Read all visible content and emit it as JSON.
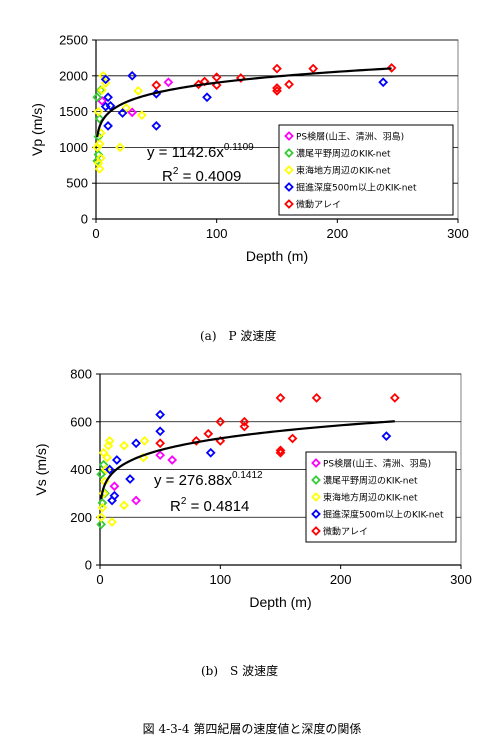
{
  "chart_data": [
    {
      "type": "scatter",
      "caption": "(a)　P 波速度",
      "xlabel": "Depth (m)",
      "ylabel": "Vp (m/s)",
      "xlim": [
        0,
        300
      ],
      "ylim": [
        0,
        2500
      ],
      "xticks": [
        0,
        100,
        200,
        300
      ],
      "yticks": [
        0,
        500,
        1000,
        1500,
        2000,
        2500
      ],
      "grid": "horizontal",
      "legend_position": "right-bottom",
      "equation": {
        "lhs": "y = 1142.6x",
        "exp": "0.1109"
      },
      "r2": {
        "lhs": "R",
        "exp": "2",
        "rhs": " = 0.4009"
      },
      "fit": {
        "a": 1142.6,
        "b": 0.1109,
        "x_range": [
          1,
          245
        ]
      },
      "series": [
        {
          "name": "PS検層(山王、清洲、羽島)",
          "color": "#ff00ff",
          "points": [
            [
              60,
              1910
            ],
            [
              30,
              1490
            ],
            [
              5,
              1650
            ]
          ]
        },
        {
          "name": "濃尾平野周辺のKIK-net",
          "color": "#33cc33",
          "points": [
            [
              1,
              810
            ],
            [
              2,
              900
            ],
            [
              2,
              1150
            ],
            [
              3,
              1400
            ],
            [
              1,
              1700
            ],
            [
              4,
              1800
            ]
          ]
        },
        {
          "name": "東海地方周辺のKIK-net",
          "color": "#ffff00",
          "points": [
            [
              1,
              1000
            ],
            [
              2,
              780
            ],
            [
              3,
              700
            ],
            [
              3,
              1050
            ],
            [
              4,
              1200
            ],
            [
              2,
              1500
            ],
            [
              5,
              1800
            ],
            [
              6,
              2000
            ],
            [
              8,
              1900
            ],
            [
              20,
              1000
            ],
            [
              25,
              1550
            ],
            [
              35,
              1790
            ],
            [
              38,
              1450
            ],
            [
              4,
              850
            ]
          ]
        },
        {
          "name": "掘進深度500m以上のKIK-net",
          "color": "#0000ff",
          "points": [
            [
              8,
              1570
            ],
            [
              10,
              1300
            ],
            [
              12,
              1580
            ],
            [
              10,
              1700
            ],
            [
              8,
              1950
            ],
            [
              22,
              1480
            ],
            [
              30,
              2000
            ],
            [
              50,
              1300
            ],
            [
              50,
              1750
            ],
            [
              92,
              1700
            ],
            [
              238,
              1910
            ]
          ]
        },
        {
          "name": "微動アレイ",
          "color": "#ff0000",
          "points": [
            [
              50,
              1870
            ],
            [
              85,
              1880
            ],
            [
              90,
              1920
            ],
            [
              100,
              1870
            ],
            [
              100,
              1980
            ],
            [
              120,
              1970
            ],
            [
              150,
              1790
            ],
            [
              150,
              1830
            ],
            [
              150,
              2100
            ],
            [
              160,
              1880
            ],
            [
              180,
              2100
            ],
            [
              245,
              2110
            ]
          ]
        }
      ]
    },
    {
      "type": "scatter",
      "caption": "(b)　S 波速度",
      "xlabel": "Depth (m)",
      "ylabel": "Vs (m/s)",
      "xlim": [
        0,
        300
      ],
      "ylim": [
        0,
        800
      ],
      "xticks": [
        0,
        100,
        200,
        300
      ],
      "yticks": [
        0,
        200,
        400,
        600,
        800
      ],
      "grid": "horizontal",
      "legend_position": "right-bottom",
      "equation": {
        "lhs": "y = 276.88x",
        "exp": "0.1412"
      },
      "r2": {
        "lhs": "R",
        "exp": "2",
        "rhs": " = 0.4814"
      },
      "fit": {
        "a": 276.88,
        "b": 0.1412,
        "x_range": [
          1,
          245
        ]
      },
      "series": [
        {
          "name": "PS検層(山王、清洲、羽島)",
          "color": "#ff00ff",
          "points": [
            [
              30,
              270
            ],
            [
              60,
              440
            ],
            [
              12,
              330
            ],
            [
              50,
              460
            ]
          ]
        },
        {
          "name": "濃尾平野周辺のKIK-net",
          "color": "#33cc33",
          "points": [
            [
              1,
              170
            ],
            [
              2,
              260
            ],
            [
              1,
              380
            ],
            [
              3,
              420
            ],
            [
              4,
              300
            ]
          ]
        },
        {
          "name": "東海地方周辺のKIK-net",
          "color": "#ffff00",
          "points": [
            [
              1,
              200
            ],
            [
              2,
              240
            ],
            [
              3,
              300
            ],
            [
              4,
              350
            ],
            [
              5,
              400
            ],
            [
              6,
              450
            ],
            [
              7,
              500
            ],
            [
              8,
              520
            ],
            [
              10,
              180
            ],
            [
              20,
              250
            ],
            [
              20,
              500
            ],
            [
              36,
              450
            ],
            [
              37,
              520
            ],
            [
              3,
              470
            ]
          ]
        },
        {
          "name": "掘進深度500m以上のKIK-net",
          "color": "#0000ff",
          "points": [
            [
              10,
              270
            ],
            [
              12,
              290
            ],
            [
              14,
              440
            ],
            [
              8,
              400
            ],
            [
              25,
              360
            ],
            [
              30,
              510
            ],
            [
              50,
              560
            ],
            [
              50,
              630
            ],
            [
              92,
              470
            ],
            [
              238,
              540
            ]
          ]
        },
        {
          "name": "微動アレイ",
          "color": "#ff0000",
          "points": [
            [
              50,
              510
            ],
            [
              80,
              520
            ],
            [
              90,
              550
            ],
            [
              100,
              520
            ],
            [
              100,
              600
            ],
            [
              120,
              580
            ],
            [
              120,
              600
            ],
            [
              150,
              470
            ],
            [
              150,
              480
            ],
            [
              150,
              700
            ],
            [
              160,
              530
            ],
            [
              180,
              700
            ],
            [
              245,
              700
            ]
          ]
        }
      ]
    }
  ],
  "figure_caption": "図 4-3-4 第四紀層の速度値と深度の関係"
}
